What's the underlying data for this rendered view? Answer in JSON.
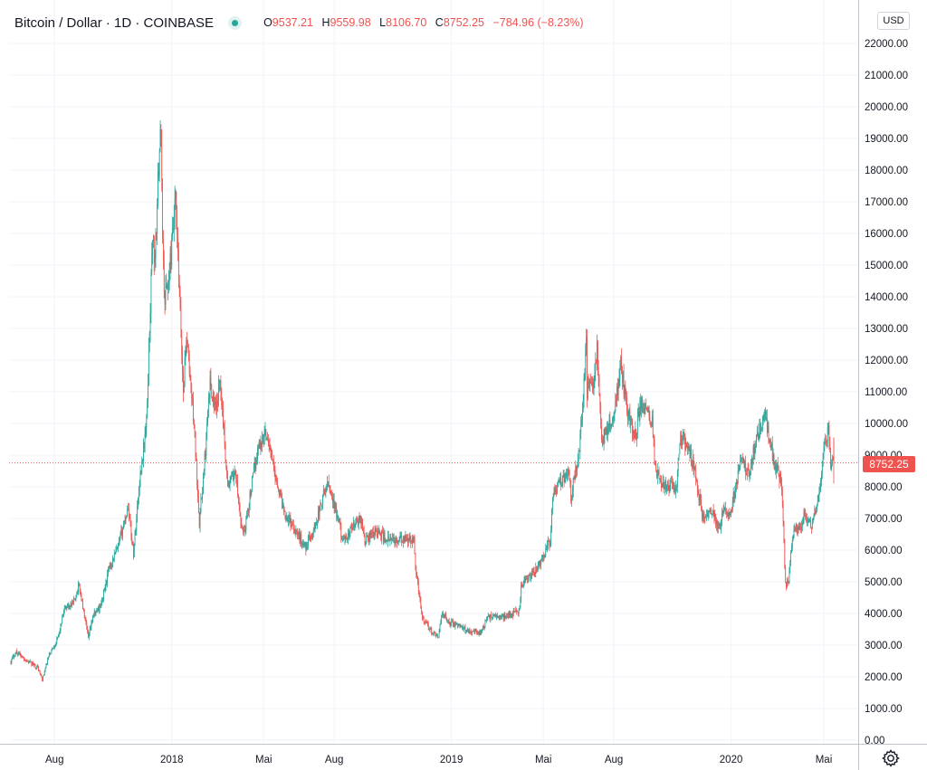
{
  "header": {
    "symbol_title": "Bitcoin / Dollar · 1D · COINBASE",
    "ohlc": {
      "open_label": "O",
      "open": "9537.21",
      "high_label": "H",
      "high": "9559.98",
      "low_label": "L",
      "low": "8106.70",
      "close_label": "C",
      "close": "8752.25",
      "change": "−784.96 (−8.23%)"
    }
  },
  "axis": {
    "currency": "USD",
    "last_price_label": "8752.25"
  },
  "colors": {
    "up": "#26a69a",
    "down": "#ef5350",
    "grid": "#f0f3fa",
    "axis_text": "#131722"
  },
  "chart_data": {
    "type": "candlestick",
    "title": "Bitcoin / Dollar · 1D · COINBASE",
    "ylim": [
      0,
      23000
    ],
    "y_ticks": [
      0,
      1000,
      2000,
      3000,
      4000,
      5000,
      6000,
      7000,
      8000,
      9000,
      10000,
      11000,
      12000,
      13000,
      14000,
      15000,
      16000,
      17000,
      18000,
      19000,
      20000,
      21000,
      22000
    ],
    "y_tick_labels": [
      "0.00",
      "1000.00",
      "2000.00",
      "3000.00",
      "4000.00",
      "5000.00",
      "6000.00",
      "7000.00",
      "8000.00",
      "9000.00",
      "10000.00",
      "11000.00",
      "12000.00",
      "13000.00",
      "14000.00",
      "15000.00",
      "16000.00",
      "17000.00",
      "18000.00",
      "19000.00",
      "20000.00",
      "21000.00",
      "22000.00"
    ],
    "x_ticks": [
      "2017-08-01",
      "2018-01-01",
      "2018-05-01",
      "2018-08-01",
      "2019-01-01",
      "2019-05-01",
      "2019-08-01",
      "2020-01-01",
      "2020-05-01"
    ],
    "x_tick_labels": [
      "Aug",
      "2018",
      "Mai",
      "Aug",
      "2019",
      "Mai",
      "Aug",
      "2020",
      "Mai"
    ],
    "x_range": [
      "2017-06-05",
      "2020-05-14"
    ],
    "last_close": 8752.25,
    "close_series": [
      [
        "2017-06-05",
        2500
      ],
      [
        "2017-06-12",
        2800
      ],
      [
        "2017-06-26",
        2500
      ],
      [
        "2017-07-10",
        2300
      ],
      [
        "2017-07-16",
        1900
      ],
      [
        "2017-07-25",
        2700
      ],
      [
        "2017-08-05",
        3200
      ],
      [
        "2017-08-15",
        4200
      ],
      [
        "2017-08-25",
        4300
      ],
      [
        "2017-09-02",
        4900
      ],
      [
        "2017-09-14",
        3200
      ],
      [
        "2017-09-20",
        3900
      ],
      [
        "2017-10-01",
        4300
      ],
      [
        "2017-10-12",
        5500
      ],
      [
        "2017-10-22",
        6000
      ],
      [
        "2017-11-05",
        7400
      ],
      [
        "2017-11-12",
        5900
      ],
      [
        "2017-11-20",
        8200
      ],
      [
        "2017-11-29",
        10000
      ],
      [
        "2017-12-07",
        16000
      ],
      [
        "2017-12-10",
        15000
      ],
      [
        "2017-12-17",
        19500
      ],
      [
        "2017-12-22",
        14000
      ],
      [
        "2017-12-28",
        14500
      ],
      [
        "2018-01-06",
        17000
      ],
      [
        "2018-01-16",
        11000
      ],
      [
        "2018-01-20",
        12800
      ],
      [
        "2018-01-30",
        10000
      ],
      [
        "2018-02-06",
        6900
      ],
      [
        "2018-02-12",
        8500
      ],
      [
        "2018-02-20",
        11300
      ],
      [
        "2018-02-28",
        10300
      ],
      [
        "2018-03-05",
        11500
      ],
      [
        "2018-03-15",
        8000
      ],
      [
        "2018-03-25",
        8500
      ],
      [
        "2018-04-01",
        6800
      ],
      [
        "2018-04-06",
        6600
      ],
      [
        "2018-04-15",
        8000
      ],
      [
        "2018-04-24",
        9300
      ],
      [
        "2018-05-05",
        9700
      ],
      [
        "2018-05-15",
        8500
      ],
      [
        "2018-05-28",
        7200
      ],
      [
        "2018-06-10",
        6700
      ],
      [
        "2018-06-24",
        6100
      ],
      [
        "2018-07-05",
        6600
      ],
      [
        "2018-07-24",
        8200
      ],
      [
        "2018-08-05",
        7000
      ],
      [
        "2018-08-14",
        6200
      ],
      [
        "2018-08-24",
        6700
      ],
      [
        "2018-09-05",
        7000
      ],
      [
        "2018-09-10",
        6300
      ],
      [
        "2018-09-24",
        6600
      ],
      [
        "2018-10-11",
        6300
      ],
      [
        "2018-10-31",
        6300
      ],
      [
        "2018-11-13",
        6300
      ],
      [
        "2018-11-15",
        5600
      ],
      [
        "2018-11-20",
        4500
      ],
      [
        "2018-11-25",
        3800
      ],
      [
        "2018-12-07",
        3400
      ],
      [
        "2018-12-14",
        3200
      ],
      [
        "2018-12-20",
        4000
      ],
      [
        "2018-12-31",
        3700
      ],
      [
        "2019-01-10",
        3600
      ],
      [
        "2019-01-20",
        3500
      ],
      [
        "2019-02-07",
        3400
      ],
      [
        "2019-02-19",
        3900
      ],
      [
        "2019-03-10",
        3900
      ],
      [
        "2019-03-31",
        4100
      ],
      [
        "2019-04-02",
        4900
      ],
      [
        "2019-04-20",
        5300
      ],
      [
        "2019-05-10",
        6300
      ],
      [
        "2019-05-14",
        7900
      ],
      [
        "2019-05-20",
        8000
      ],
      [
        "2019-06-02",
        8600
      ],
      [
        "2019-06-06",
        7700
      ],
      [
        "2019-06-16",
        9000
      ],
      [
        "2019-06-22",
        10700
      ],
      [
        "2019-06-26",
        12900
      ],
      [
        "2019-06-27",
        11000
      ],
      [
        "2019-07-05",
        11300
      ],
      [
        "2019-07-10",
        12300
      ],
      [
        "2019-07-16",
        9500
      ],
      [
        "2019-07-25",
        9800
      ],
      [
        "2019-08-02",
        10500
      ],
      [
        "2019-08-10",
        11800
      ],
      [
        "2019-08-20",
        10200
      ],
      [
        "2019-08-29",
        9600
      ],
      [
        "2019-09-05",
        10600
      ],
      [
        "2019-09-20",
        10100
      ],
      [
        "2019-09-24",
        8500
      ],
      [
        "2019-10-06",
        8000
      ],
      [
        "2019-10-22",
        8000
      ],
      [
        "2019-10-26",
        9500
      ],
      [
        "2019-11-05",
        9300
      ],
      [
        "2019-11-15",
        8500
      ],
      [
        "2019-11-25",
        7000
      ],
      [
        "2019-12-05",
        7300
      ],
      [
        "2019-12-18",
        6600
      ],
      [
        "2019-12-20",
        7200
      ],
      [
        "2020-01-01",
        7200
      ],
      [
        "2020-01-07",
        8100
      ],
      [
        "2020-01-14",
        8800
      ],
      [
        "2020-01-25",
        8400
      ],
      [
        "2020-02-01",
        9300
      ],
      [
        "2020-02-10",
        10000
      ],
      [
        "2020-02-14",
        10300
      ],
      [
        "2020-02-18",
        9700
      ],
      [
        "2020-02-26",
        8800
      ],
      [
        "2020-03-07",
        8100
      ],
      [
        "2020-03-12",
        4900
      ],
      [
        "2020-03-16",
        5000
      ],
      [
        "2020-03-20",
        6200
      ],
      [
        "2020-03-24",
        6700
      ],
      [
        "2020-04-01",
        6600
      ],
      [
        "2020-04-06",
        7200
      ],
      [
        "2020-04-15",
        6700
      ],
      [
        "2020-04-23",
        7500
      ],
      [
        "2020-04-29",
        8700
      ],
      [
        "2020-05-07",
        9900
      ],
      [
        "2020-05-10",
        8750
      ],
      [
        "2020-05-14",
        8752.25
      ]
    ]
  }
}
